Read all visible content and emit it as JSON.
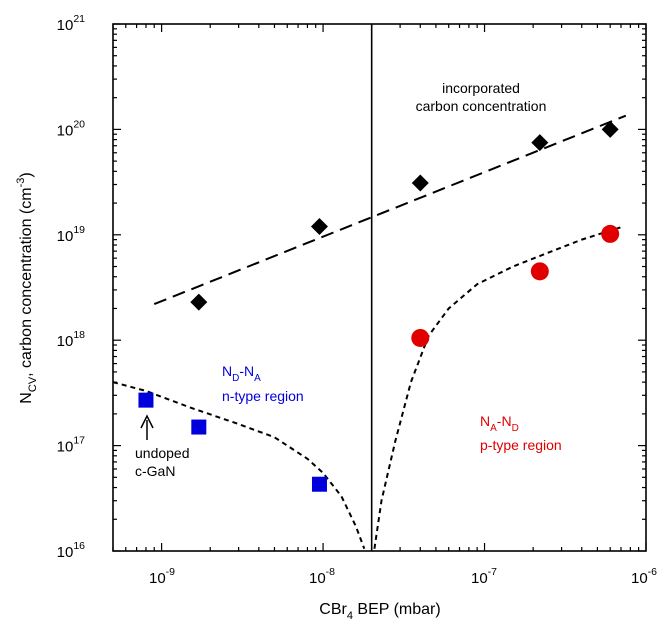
{
  "chart_data": {
    "type": "scatter",
    "title": "",
    "xlabel": {
      "main": "CBr",
      "sub": "4",
      "rest": " BEP (mbar)"
    },
    "ylabel": {
      "main": "N",
      "sub": "CV",
      "mid": ", carbon concentration (cm",
      "sup": "-3",
      "end": ")"
    },
    "xscale": "log",
    "yscale": "log",
    "xlim": [
      5e-10,
      1e-06
    ],
    "ylim": [
      1e+16,
      1e+21
    ],
    "grid": false,
    "legend": "none",
    "x_ticks": [
      {
        "base": "10",
        "exp": "-9",
        "value": 1e-09
      },
      {
        "base": "10",
        "exp": "-8",
        "value": 1e-08
      },
      {
        "base": "10",
        "exp": "-7",
        "value": 1e-07
      },
      {
        "base": "10",
        "exp": "-6",
        "value": 1e-06
      }
    ],
    "y_ticks": [
      {
        "base": "10",
        "exp": "16",
        "value": 1e+16
      },
      {
        "base": "10",
        "exp": "17",
        "value": 1e+17
      },
      {
        "base": "10",
        "exp": "18",
        "value": 1e+18
      },
      {
        "base": "10",
        "exp": "19",
        "value": 1e+19
      },
      {
        "base": "10",
        "exp": "20",
        "value": 1e+20
      },
      {
        "base": "10",
        "exp": "21",
        "value": 1e+21
      }
    ],
    "vertical_line_x": 2e-08,
    "series": [
      {
        "marker": "diamond",
        "color": "#000000",
        "points": [
          [
            1.7e-09,
            2.3e+18
          ],
          [
            9.5e-09,
            1.2e+19
          ],
          [
            4e-08,
            3.1e+19
          ],
          [
            2.2e-07,
            7.5e+19
          ],
          [
            6e-07,
            1e+20
          ]
        ]
      },
      {
        "marker": "square",
        "color": "#0000dd",
        "points": [
          [
            8e-10,
            2.7e+17
          ],
          [
            1.7e-09,
            1.5e+17
          ],
          [
            9.5e-09,
            4.3e+16
          ]
        ]
      },
      {
        "marker": "circle",
        "color": "#e00000",
        "points": [
          [
            4e-08,
            1.05e+18
          ],
          [
            2.2e-07,
            4.5e+18
          ],
          [
            6e-07,
            1.02e+19
          ]
        ]
      }
    ],
    "fit_lines": [
      {
        "style": "long-dash",
        "points": [
          [
            9e-10,
            2.2e+18
          ],
          [
            7.5e-07,
            1.35e+20
          ]
        ]
      },
      {
        "style": "short-dash",
        "points": [
          [
            5e-10,
            4e+17
          ],
          [
            8e-10,
            3.3e+17
          ],
          [
            1.5e-09,
            2.3e+17
          ],
          [
            3e-09,
            1.6e+17
          ],
          [
            5e-09,
            1.2e+17
          ],
          [
            8e-09,
            7.5e+16
          ],
          [
            1e-08,
            5.5e+16
          ],
          [
            1.3e-08,
            3.3e+16
          ],
          [
            1.6e-08,
            1.7e+16
          ],
          [
            1.8e-08,
            1.05e+16
          ]
        ]
      },
      {
        "style": "short-dash",
        "points": [
          [
            2.08e-08,
            1.05e+16
          ],
          [
            2.3e-08,
            3e+16
          ],
          [
            2.8e-08,
            1.1e+17
          ],
          [
            3.5e-08,
            4e+17
          ],
          [
            4.5e-08,
            1.1e+18
          ],
          [
            6e-08,
            2e+18
          ],
          [
            9e-08,
            3.4e+18
          ],
          [
            1.5e-07,
            5e+18
          ],
          [
            2.5e-07,
            6.8e+18
          ],
          [
            4e-07,
            9e+18
          ],
          [
            7e-07,
            1.18e+19
          ]
        ]
      }
    ],
    "annotations": {
      "incorporated": {
        "line1": "incorporated",
        "line2": "carbon concentration"
      },
      "n_region": {
        "n1": "N",
        "n1_sub": "D",
        "dash": "-",
        "n2": "N",
        "n2_sub": "A",
        "line2": "n-type region",
        "color": "#0000dd"
      },
      "p_region": {
        "n1": "N",
        "n1_sub": "A",
        "dash": "-",
        "n2": "N",
        "n2_sub": "D",
        "line2": "p-type region",
        "color": "#e00000"
      },
      "undoped": {
        "line1": "undoped",
        "line2": "c-GaN"
      }
    }
  }
}
